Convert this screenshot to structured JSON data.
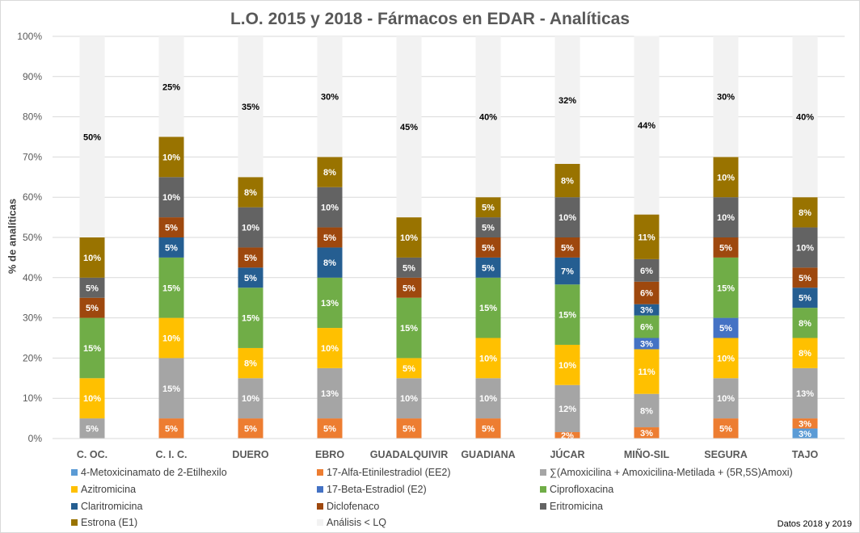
{
  "chart_data": {
    "type": "bar",
    "stacked": "percent",
    "title": "L.O. 2015 y 2018 - Fármacos en EDAR - Analíticas",
    "ylabel": "% de analíticas",
    "xlabel": "",
    "ylim": [
      0,
      100
    ],
    "yticks": [
      "0%",
      "10%",
      "20%",
      "30%",
      "40%",
      "50%",
      "60%",
      "70%",
      "80%",
      "90%",
      "100%"
    ],
    "grid": true,
    "legend_position": "bottom",
    "categories": [
      "C. OC.",
      "C. I. C.",
      "DUERO",
      "EBRO",
      "GUADALQUIVIR",
      "GUADIANA",
      "JÚCAR",
      "MIÑO-SIL",
      "SEGURA",
      "TAJO"
    ],
    "series": [
      {
        "name": "4-Metoxicinamato de 2-Etilhexilo",
        "color": "#5B9BD5",
        "values": [
          0,
          0,
          0,
          0,
          0,
          0,
          0,
          0,
          0,
          2.5
        ]
      },
      {
        "name": "17-Alfa-Etinilestradiol (EE2)",
        "color": "#ED7D31",
        "values": [
          0,
          5,
          5,
          5,
          5,
          5,
          1.6,
          2.8,
          5,
          2.5
        ]
      },
      {
        "name": "∑(Amoxicilina + Amoxicilina-Metilada + (5R,5S)Amoxi)",
        "color": "#A5A5A5",
        "values": [
          5,
          15,
          10,
          12.5,
          10,
          10,
          11.7,
          8.3,
          10,
          12.5
        ]
      },
      {
        "name": "Azitromicina",
        "color": "#FFC000",
        "values": [
          10,
          10,
          7.5,
          10,
          5,
          10,
          10,
          11.1,
          10,
          7.5
        ]
      },
      {
        "name": "17-Beta-Estradiol (E2)",
        "color": "#4472C4",
        "values": [
          0,
          0,
          0,
          0,
          0,
          0,
          0,
          2.8,
          5,
          0
        ]
      },
      {
        "name": "Ciprofloxacina",
        "color": "#70AD47",
        "values": [
          15,
          15,
          15,
          12.5,
          15,
          15,
          15,
          5.6,
          15,
          7.5
        ]
      },
      {
        "name": "Claritromicina",
        "color": "#255E91",
        "values": [
          0,
          5,
          5,
          7.5,
          0,
          5,
          6.7,
          2.8,
          0,
          5
        ]
      },
      {
        "name": "Diclofenaco",
        "color": "#9E480E",
        "values": [
          5,
          5,
          5,
          5,
          5,
          5,
          5,
          5.6,
          5,
          5
        ]
      },
      {
        "name": "Eritromicina",
        "color": "#636363",
        "values": [
          5,
          10,
          10,
          10,
          5,
          5,
          10,
          5.6,
          10,
          10
        ]
      },
      {
        "name": "Estrona (E1)",
        "color": "#997300",
        "values": [
          10,
          10,
          7.5,
          7.5,
          10,
          5,
          8.3,
          11.1,
          10,
          7.5
        ]
      },
      {
        "name": "Análisis < LQ",
        "color": "#F2F2F2",
        "values": [
          50,
          25,
          35,
          30,
          45,
          40,
          31.7,
          44.4,
          30,
          40
        ]
      }
    ]
  },
  "footnote": "Datos 2018 y 2019"
}
